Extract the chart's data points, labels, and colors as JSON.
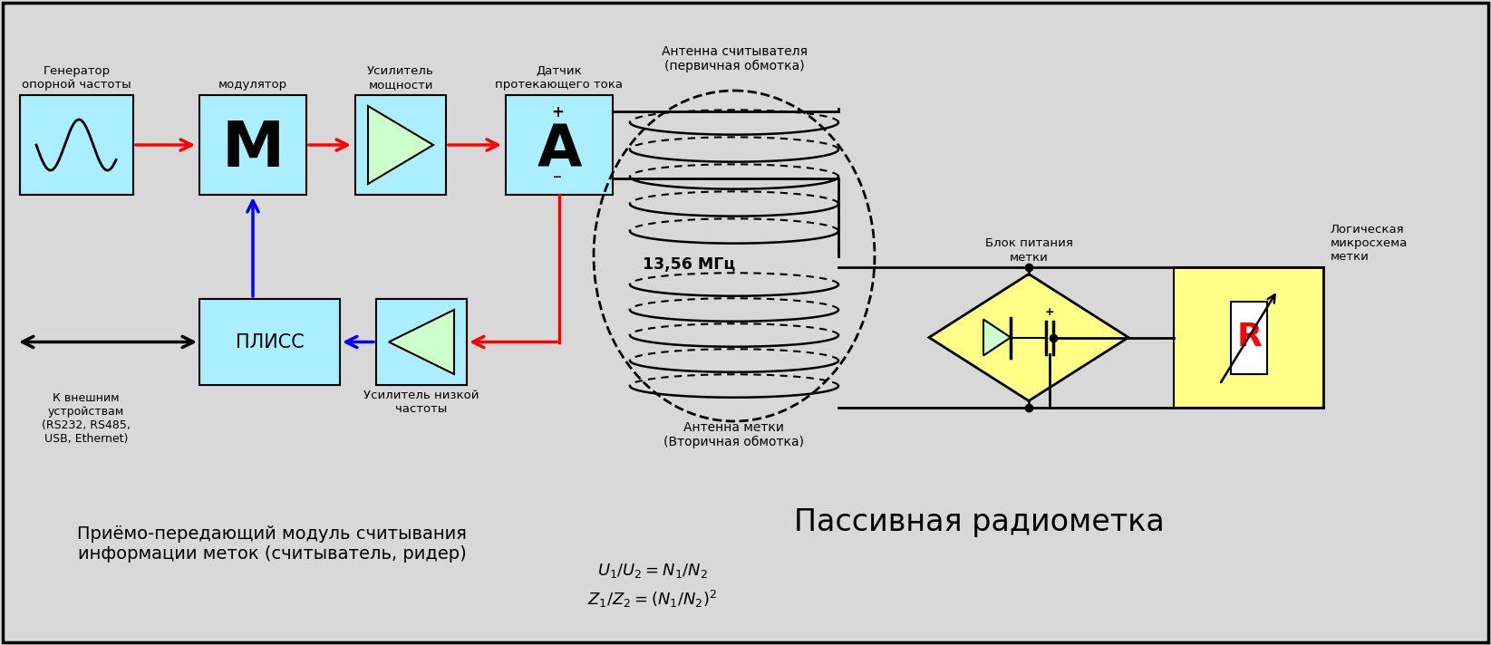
{
  "bg_color": "#d8d8d8",
  "box_color": "#aaeeff",
  "yellow_color": "#ffff88",
  "green_light": "#ccffcc",
  "label_gen": "Генератор\nопорной частоты",
  "label_mod": "модулятор",
  "label_amp": "Усилитель\nмощности",
  "label_sensor": "Датчик\nпротекающего тока",
  "label_pliss": "ПЛИСС",
  "label_lowamp": "Усилитель низкой\nчастоты",
  "label_external": "К внешним\nустройствам\n(RS232, RS485,\nUSB, Ethernet)",
  "label_antenna_reader": "Антенна считывателя\n(первичная обмотка)",
  "label_antenna_tag": "Антенна метки\n(Вторичная обмотка)",
  "label_power": "Блок питания\nметки",
  "label_logic": "Логическая\nмикросхема\nметки",
  "freq_label": "13,56 МГц",
  "title_passive": "Пассивная радиометка",
  "title_reader": "Приёмо-передающий модуль считывания\nинформации меток (считыватель, ридер)",
  "formula1": "$U_1/U_2=N_1/N_2$",
  "formula2": "$Z_1/Z_2=(N_1/N_2)^2$"
}
